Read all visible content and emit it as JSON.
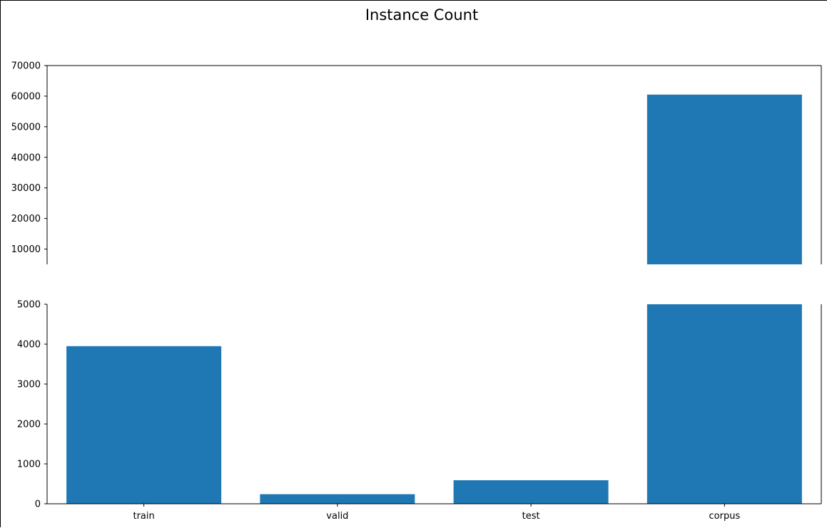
{
  "chart_data": {
    "type": "bar",
    "title": "Instance Count",
    "xlabel": "",
    "ylabel": "",
    "categories": [
      "train",
      "valid",
      "test",
      "corpus"
    ],
    "values": [
      3950,
      240,
      590,
      60500
    ],
    "broken_axis": true,
    "upper_panel": {
      "ylim": [
        5000,
        70000
      ],
      "yticks": [
        "10000",
        "20000",
        "30000",
        "40000",
        "50000",
        "60000",
        "70000"
      ]
    },
    "lower_panel": {
      "ylim": [
        0,
        5000
      ],
      "yticks": [
        "0",
        "1000",
        "2000",
        "3000",
        "4000",
        "5000"
      ]
    },
    "grid": false,
    "bar_color": "#1f77b4"
  }
}
